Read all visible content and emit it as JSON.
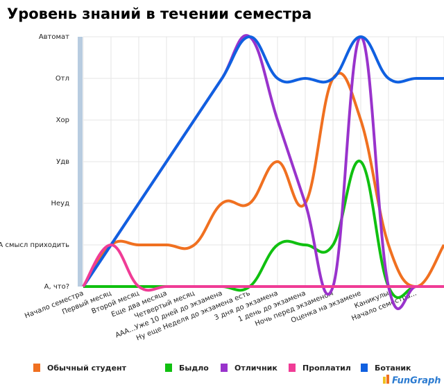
{
  "chart_data": {
    "type": "line",
    "title": "Уровень знаний в течении семестра",
    "categories": [
      "Начало семестра",
      "Первый месяц",
      "Второй месяц",
      "Еще два месяца",
      "Четвертый месяц",
      "ААА...Уже 10 дней до экзамена",
      "Ну еще Неделя до экзамена есть",
      "3 дня до экзамена",
      "1 день до экзамена",
      "Ночь перед экзаменом",
      "Оценка на экзамене",
      "Каникулы",
      "Начало семестра...",
      null
    ],
    "series": [
      {
        "name": "Обычный студент",
        "color": "#f07020",
        "values": [
          0,
          1,
          1,
          1,
          1,
          2,
          2,
          3,
          2,
          5,
          4,
          1,
          0,
          1
        ]
      },
      {
        "name": "Быдло",
        "color": "#10c010",
        "values": [
          0,
          0,
          0,
          0,
          0,
          0,
          0,
          1,
          1,
          1,
          3,
          0,
          0,
          0
        ]
      },
      {
        "name": "Отличник",
        "color": "#9933cc",
        "values": [
          0,
          1,
          2,
          3,
          4,
          5,
          6,
          4,
          2,
          0,
          6,
          0,
          0,
          0
        ]
      },
      {
        "name": "Проплатил",
        "color": "#f03c96",
        "values": [
          0,
          1,
          0,
          0,
          0,
          0,
          0,
          0,
          0,
          0,
          0,
          0,
          0,
          0
        ]
      },
      {
        "name": "Ботаник",
        "color": "#1060e0",
        "values": [
          0,
          1,
          2,
          3,
          4,
          5,
          6,
          5,
          5,
          5,
          6,
          5,
          5,
          5
        ]
      }
    ],
    "ylim": [
      0,
      6
    ],
    "yticks": [
      {
        "value": 0,
        "label": "А, что?"
      },
      {
        "value": 1,
        "label": "А смысл приходить"
      },
      {
        "value": 2,
        "label": "Неуд"
      },
      {
        "value": 3,
        "label": "Удв"
      },
      {
        "value": 4,
        "label": "Хор"
      },
      {
        "value": 5,
        "label": "Отл"
      },
      {
        "value": 6,
        "label": "Автомат"
      }
    ],
    "grid": true,
    "logo": "FunGraph"
  }
}
